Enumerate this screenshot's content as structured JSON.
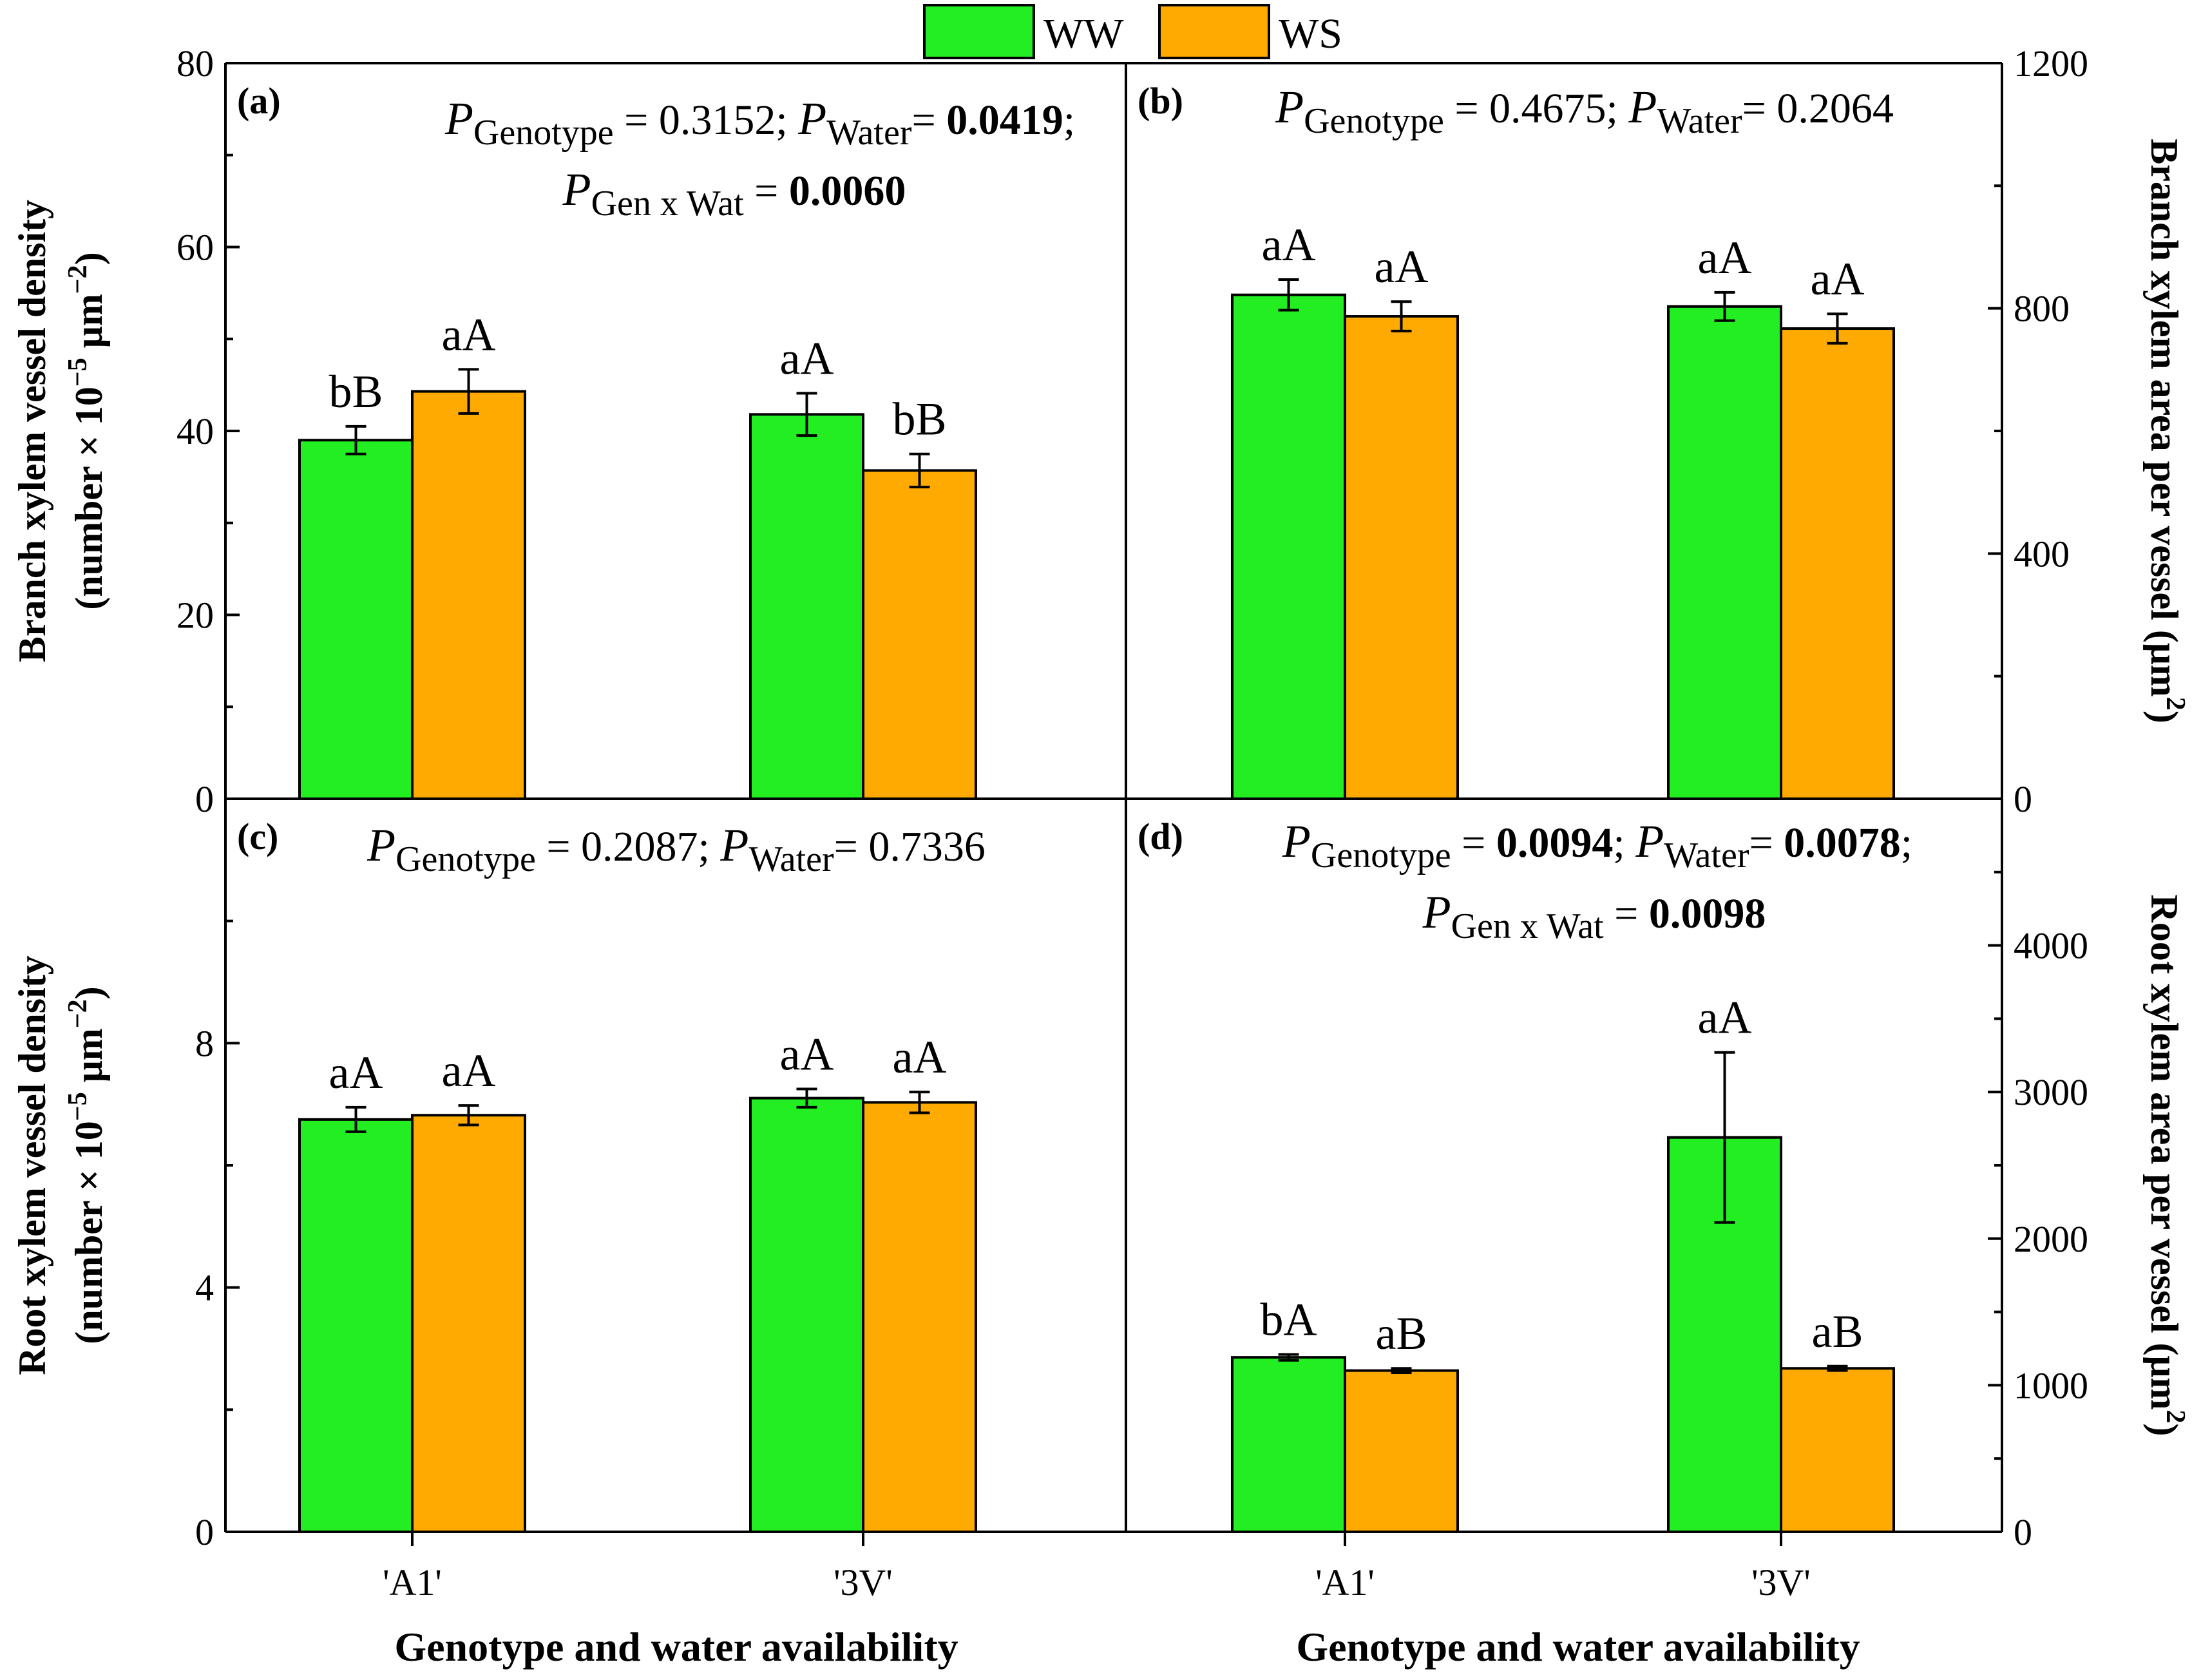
{
  "legend": {
    "placement": "top-center",
    "entries": [
      {
        "name": "WW",
        "color": "#22EE22"
      },
      {
        "name": "WS",
        "color": "#FFAA00"
      }
    ]
  },
  "common_xlabel": "Genotype and water availability",
  "chart_data": [
    {
      "id": "a",
      "type": "bar",
      "panel_label": "(a)",
      "categories": [
        "'A1'",
        "'3V'"
      ],
      "series": [
        {
          "name": "WW",
          "color": "#22EE22",
          "values": [
            39.0,
            41.8
          ],
          "errors": [
            1.5,
            2.3
          ],
          "labels": [
            "bB",
            "aA"
          ]
        },
        {
          "name": "WS",
          "color": "#FFAA00",
          "values": [
            44.3,
            35.7
          ],
          "errors": [
            2.4,
            1.8
          ],
          "labels": [
            "aA",
            "bB"
          ]
        }
      ],
      "ylim": [
        0,
        80
      ],
      "yticks": [
        0,
        20,
        40,
        60,
        80
      ],
      "ylabel": [
        "Branch xylem vessel density",
        "(number × 10",
        "−5",
        " μm",
        "−2",
        ")"
      ],
      "stats": [
        [
          {
            "t": "P",
            "s": "italic"
          },
          {
            "t": "Genotype",
            "s": "sub"
          },
          {
            "t": " = 0.3152; ",
            "s": "normal"
          },
          {
            "t": "P",
            "s": "italic"
          },
          {
            "t": "Water",
            "s": "sub"
          },
          {
            "t": "= ",
            "s": "normal"
          },
          {
            "t": "0.0419",
            "s": "bold"
          },
          {
            "t": ";",
            "s": "normal"
          }
        ],
        [
          {
            "t": "P",
            "s": "italic"
          },
          {
            "t": "Gen x Wat",
            "s": "sub"
          },
          {
            "t": " = ",
            "s": "normal"
          },
          {
            "t": "0.0060",
            "s": "bold"
          }
        ]
      ]
    },
    {
      "id": "b",
      "type": "bar",
      "panel_label": "(b)",
      "categories": [
        "'A1'",
        "'3V'"
      ],
      "series": [
        {
          "name": "WW",
          "color": "#22EE22",
          "values": [
            822,
            803
          ],
          "errors": [
            25,
            23
          ],
          "labels": [
            "aA",
            "aA"
          ]
        },
        {
          "name": "WS",
          "color": "#FFAA00",
          "values": [
            787,
            767
          ],
          "errors": [
            24,
            24
          ],
          "labels": [
            "aA",
            "aA"
          ]
        }
      ],
      "ylim": [
        0,
        1200
      ],
      "yticks": [
        0,
        400,
        800,
        1200
      ],
      "ylabel": [
        "Branch xylem area per vessel (μm",
        "2",
        ")"
      ],
      "stats": [
        [
          {
            "t": "P",
            "s": "italic"
          },
          {
            "t": "Genotype",
            "s": "sub"
          },
          {
            "t": " = 0.4675; ",
            "s": "normal"
          },
          {
            "t": "P",
            "s": "italic"
          },
          {
            "t": "Water",
            "s": "sub"
          },
          {
            "t": "= 0.2064",
            "s": "normal"
          }
        ]
      ]
    },
    {
      "id": "c",
      "type": "bar",
      "panel_label": "(c)",
      "categories": [
        "'A1'",
        "'3V'"
      ],
      "series": [
        {
          "name": "WW",
          "color": "#22EE22",
          "values": [
            6.75,
            7.1
          ],
          "errors": [
            0.2,
            0.15
          ],
          "labels": [
            "aA",
            "aA"
          ]
        },
        {
          "name": "WS",
          "color": "#FFAA00",
          "values": [
            6.82,
            7.03
          ],
          "errors": [
            0.16,
            0.17
          ],
          "labels": [
            "aA",
            "aA"
          ]
        }
      ],
      "ylim": [
        0,
        12
      ],
      "yticks": [
        0,
        4,
        8
      ],
      "ylabel": [
        "Root xylem vessel density",
        "(number × 10",
        "−5",
        " μm",
        "−2",
        ")"
      ],
      "stats": [
        [
          {
            "t": "P",
            "s": "italic"
          },
          {
            "t": "Genotype",
            "s": "sub"
          },
          {
            "t": " = 0.2087; ",
            "s": "normal"
          },
          {
            "t": "P",
            "s": "italic"
          },
          {
            "t": "Water",
            "s": "sub"
          },
          {
            "t": "= 0.7336",
            "s": "normal"
          }
        ]
      ]
    },
    {
      "id": "d",
      "type": "bar",
      "panel_label": "(d)",
      "categories": [
        "'A1'",
        "'3V'"
      ],
      "series": [
        {
          "name": "WW",
          "color": "#22EE22",
          "values": [
            1190,
            2690
          ],
          "errors": [
            20,
            580
          ],
          "labels": [
            "bA",
            "aA"
          ]
        },
        {
          "name": "WS",
          "color": "#FFAA00",
          "values": [
            1100,
            1115
          ],
          "errors": [
            15,
            15
          ],
          "labels": [
            "aB",
            "aB"
          ]
        }
      ],
      "ylim": [
        0,
        5000
      ],
      "yticks": [
        0,
        1000,
        2000,
        3000,
        4000
      ],
      "ylabel": [
        "Root xylem area per vessel (μm",
        "2",
        ")"
      ],
      "stats": [
        [
          {
            "t": "P",
            "s": "italic"
          },
          {
            "t": "Genotype",
            "s": "sub"
          },
          {
            "t": " = ",
            "s": "normal"
          },
          {
            "t": "0.0094",
            "s": "bold"
          },
          {
            "t": "; ",
            "s": "normal"
          },
          {
            "t": "P",
            "s": "italic"
          },
          {
            "t": "Water",
            "s": "sub"
          },
          {
            "t": "= ",
            "s": "normal"
          },
          {
            "t": "0.0078",
            "s": "bold"
          },
          {
            "t": ";",
            "s": "normal"
          }
        ],
        [
          {
            "t": "P",
            "s": "italic"
          },
          {
            "t": "Gen x Wat",
            "s": "sub"
          },
          {
            "t": " = ",
            "s": "normal"
          },
          {
            "t": "0.0098",
            "s": "bold"
          }
        ]
      ]
    }
  ]
}
